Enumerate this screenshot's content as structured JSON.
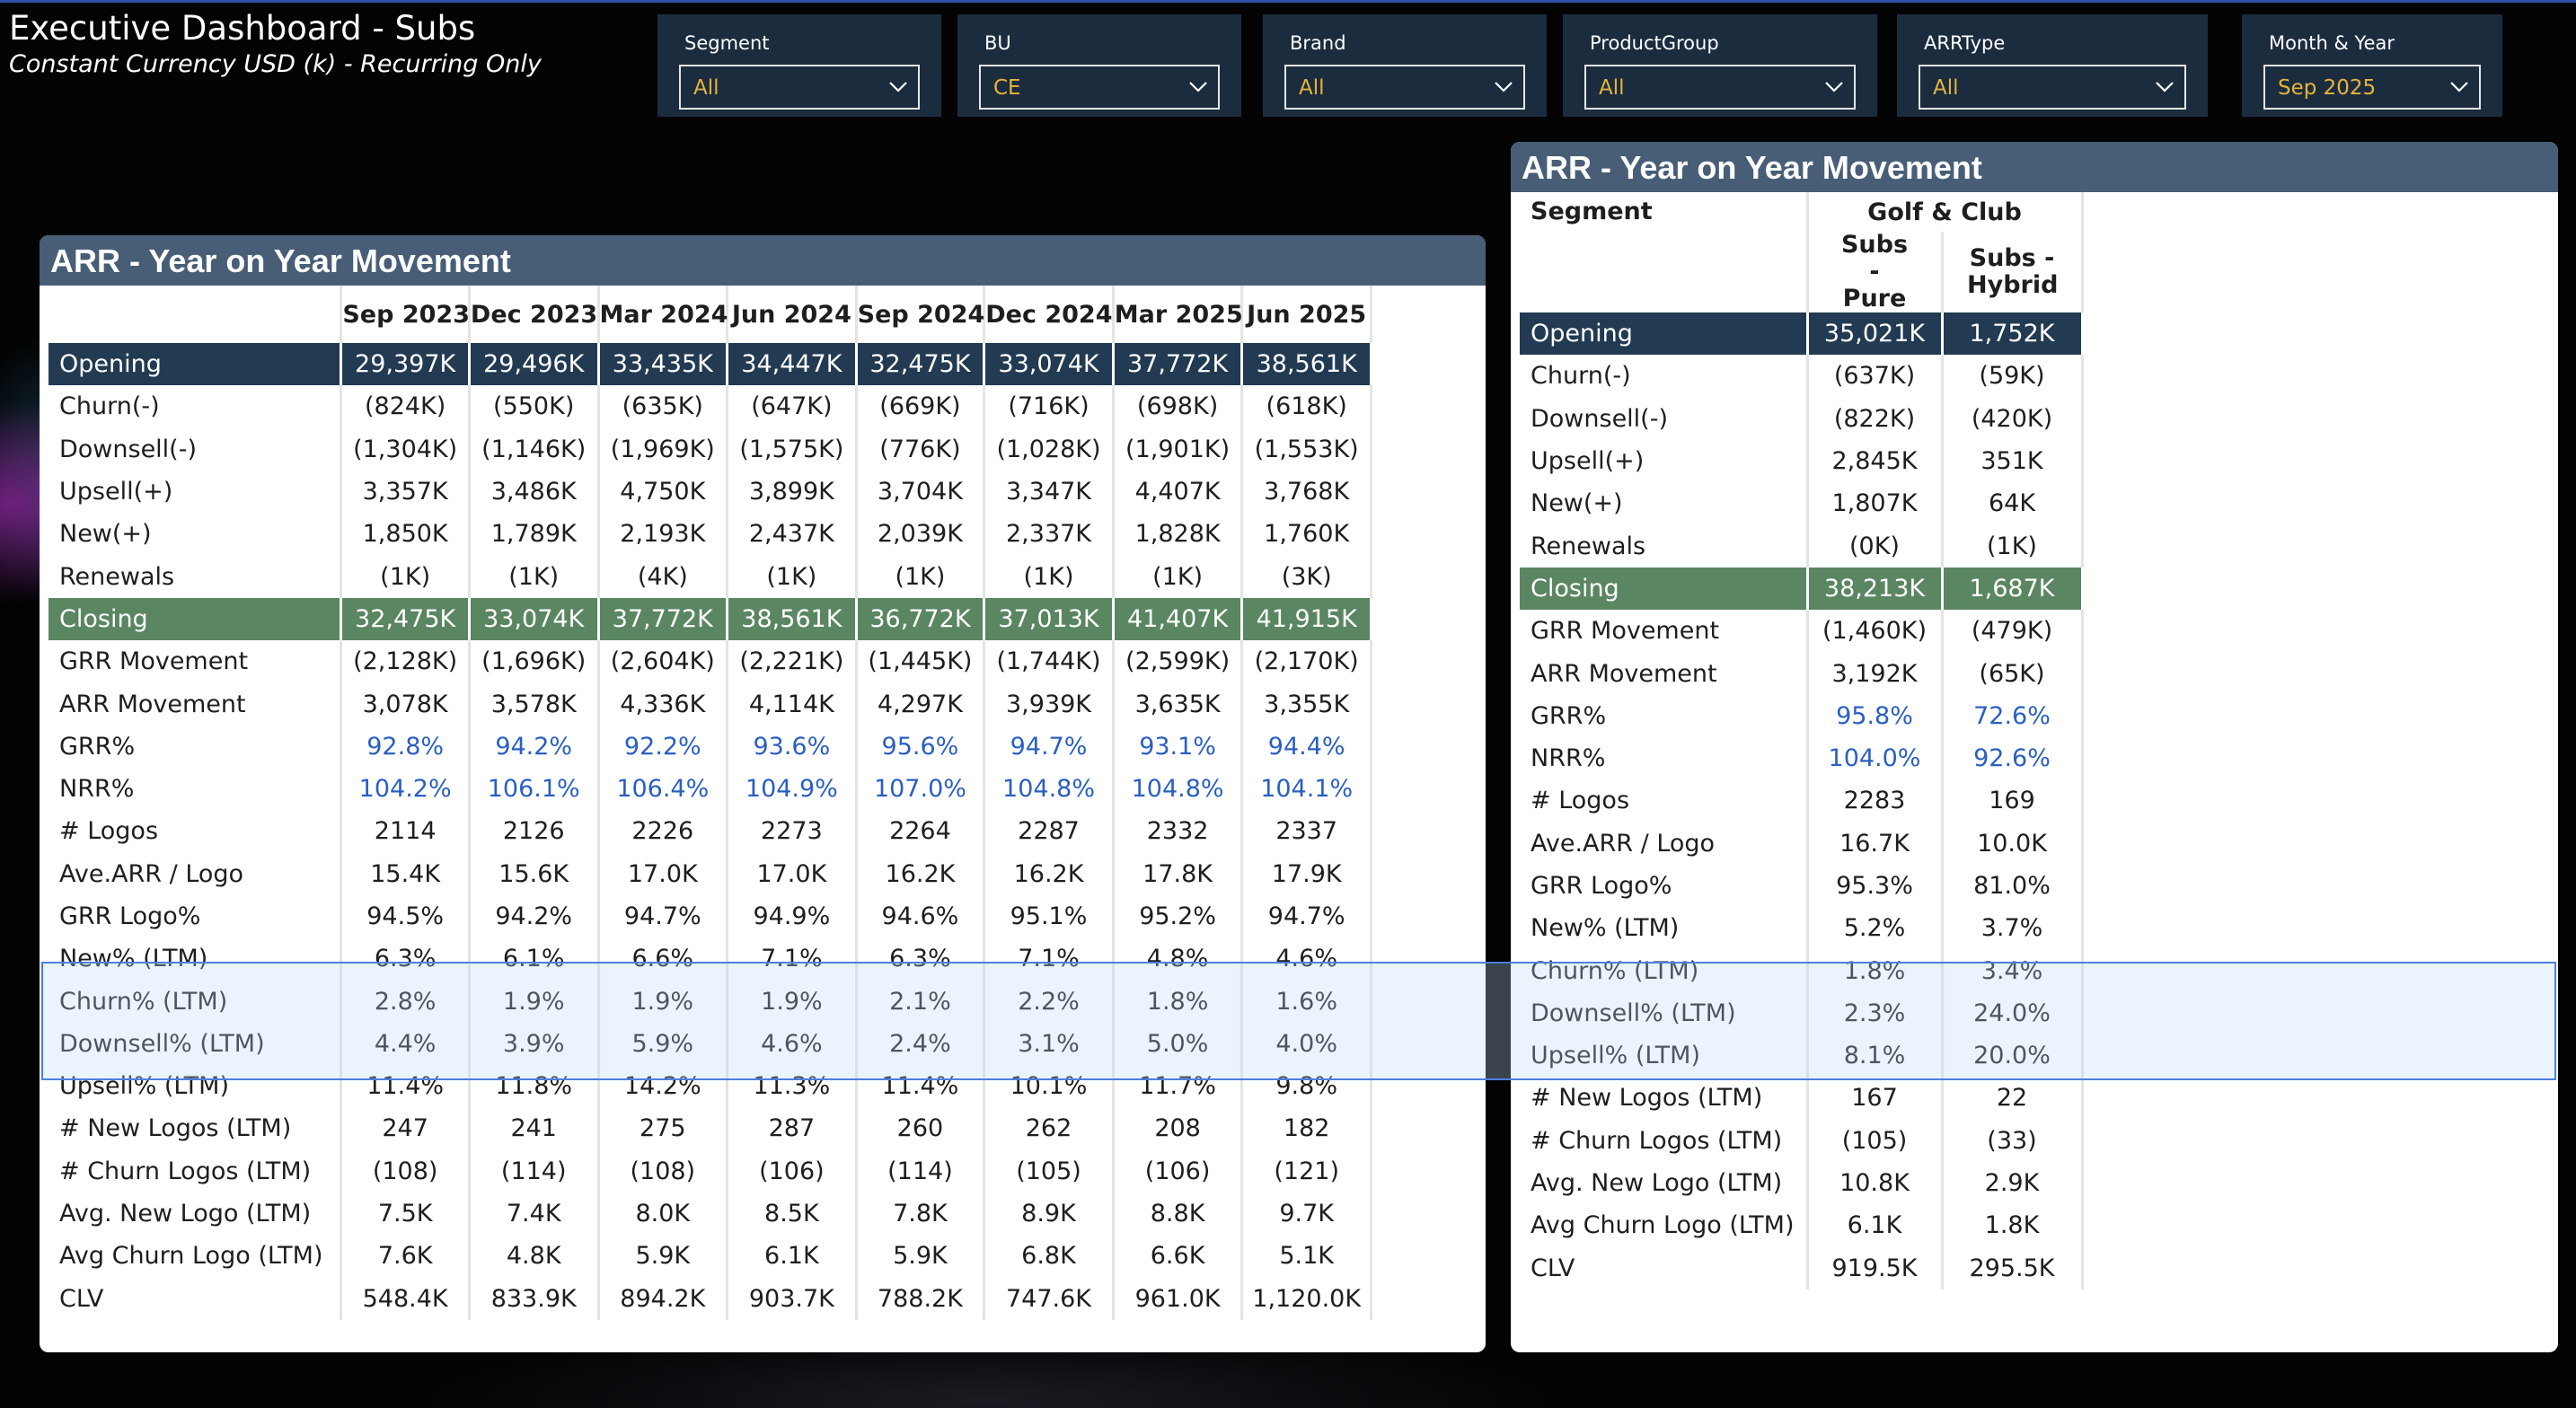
{
  "header": {
    "title": "Executive Dashboard - Subs",
    "subtitle": "Constant Currency USD (k) - Recurring Only"
  },
  "filters": [
    {
      "label": "Segment",
      "value": "All"
    },
    {
      "label": "BU",
      "value": "CE"
    },
    {
      "label": "Brand",
      "value": "All"
    },
    {
      "label": "ProductGroup",
      "value": "All"
    },
    {
      "label": "ARRType",
      "value": "All"
    },
    {
      "label": "Month & Year",
      "value": "Sep 2025"
    }
  ],
  "colors": {
    "header_bar": "#475e76",
    "opening_row": "#223a52",
    "closing_row": "#5a8661",
    "percent_text": "#2a5fc2",
    "filter_value": "#e6b33c",
    "filter_bg": "#1b2c3f",
    "selection_border": "#4a7fe0"
  },
  "left_table": {
    "title": "ARR - Year on Year Movement",
    "columns": [
      "Sep 2023",
      "Dec 2023",
      "Mar 2024",
      "Jun 2024",
      "Sep 2024",
      "Dec 2024",
      "Mar 2025",
      "Jun 2025"
    ],
    "rows": [
      {
        "label": "Opening",
        "values": [
          "29,397K",
          "29,496K",
          "33,435K",
          "34,447K",
          "32,475K",
          "33,074K",
          "37,772K",
          "38,561K"
        ]
      },
      {
        "label": "Churn(-)",
        "values": [
          "(824K)",
          "(550K)",
          "(635K)",
          "(647K)",
          "(669K)",
          "(716K)",
          "(698K)",
          "(618K)"
        ]
      },
      {
        "label": "Downsell(-)",
        "values": [
          "(1,304K)",
          "(1,146K)",
          "(1,969K)",
          "(1,575K)",
          "(776K)",
          "(1,028K)",
          "(1,901K)",
          "(1,553K)"
        ]
      },
      {
        "label": "Upsell(+)",
        "values": [
          "3,357K",
          "3,486K",
          "4,750K",
          "3,899K",
          "3,704K",
          "3,347K",
          "4,407K",
          "3,768K"
        ]
      },
      {
        "label": "New(+)",
        "values": [
          "1,850K",
          "1,789K",
          "2,193K",
          "2,437K",
          "2,039K",
          "2,337K",
          "1,828K",
          "1,760K"
        ]
      },
      {
        "label": "Renewals",
        "values": [
          "(1K)",
          "(1K)",
          "(4K)",
          "(1K)",
          "(1K)",
          "(1K)",
          "(1K)",
          "(3K)"
        ]
      },
      {
        "label": "Closing",
        "values": [
          "32,475K",
          "33,074K",
          "37,772K",
          "38,561K",
          "36,772K",
          "37,013K",
          "41,407K",
          "41,915K"
        ]
      },
      {
        "label": "GRR Movement",
        "values": [
          "(2,128K)",
          "(1,696K)",
          "(2,604K)",
          "(2,221K)",
          "(1,445K)",
          "(1,744K)",
          "(2,599K)",
          "(2,170K)"
        ]
      },
      {
        "label": "ARR Movement",
        "values": [
          "3,078K",
          "3,578K",
          "4,336K",
          "4,114K",
          "4,297K",
          "3,939K",
          "3,635K",
          "3,355K"
        ]
      },
      {
        "label": "GRR%",
        "values": [
          "92.8%",
          "94.2%",
          "92.2%",
          "93.6%",
          "95.6%",
          "94.7%",
          "93.1%",
          "94.4%"
        ]
      },
      {
        "label": "NRR%",
        "values": [
          "104.2%",
          "106.1%",
          "106.4%",
          "104.9%",
          "107.0%",
          "104.8%",
          "104.8%",
          "104.1%"
        ]
      },
      {
        "label": "# Logos",
        "values": [
          "2114",
          "2126",
          "2226",
          "2273",
          "2264",
          "2287",
          "2332",
          "2337"
        ]
      },
      {
        "label": "Ave.ARR / Logo",
        "values": [
          "15.4K",
          "15.6K",
          "17.0K",
          "17.0K",
          "16.2K",
          "16.2K",
          "17.8K",
          "17.9K"
        ]
      },
      {
        "label": "GRR Logo%",
        "values": [
          "94.5%",
          "94.2%",
          "94.7%",
          "94.9%",
          "94.6%",
          "95.1%",
          "95.2%",
          "94.7%"
        ]
      },
      {
        "label": "New% (LTM)",
        "values": [
          "6.3%",
          "6.1%",
          "6.6%",
          "7.1%",
          "6.3%",
          "7.1%",
          "4.8%",
          "4.6%"
        ]
      },
      {
        "label": "Churn% (LTM)",
        "values": [
          "2.8%",
          "1.9%",
          "1.9%",
          "1.9%",
          "2.1%",
          "2.2%",
          "1.8%",
          "1.6%"
        ]
      },
      {
        "label": "Downsell% (LTM)",
        "values": [
          "4.4%",
          "3.9%",
          "5.9%",
          "4.6%",
          "2.4%",
          "3.1%",
          "5.0%",
          "4.0%"
        ]
      },
      {
        "label": "Upsell% (LTM)",
        "values": [
          "11.4%",
          "11.8%",
          "14.2%",
          "11.3%",
          "11.4%",
          "10.1%",
          "11.7%",
          "9.8%"
        ]
      },
      {
        "label": "# New Logos (LTM)",
        "values": [
          "247",
          "241",
          "275",
          "287",
          "260",
          "262",
          "208",
          "182"
        ]
      },
      {
        "label": "# Churn Logos (LTM)",
        "values": [
          "(108)",
          "(114)",
          "(108)",
          "(106)",
          "(114)",
          "(105)",
          "(106)",
          "(121)"
        ]
      },
      {
        "label": "Avg. New Logo (LTM)",
        "values": [
          "7.5K",
          "7.4K",
          "8.0K",
          "8.5K",
          "7.8K",
          "8.9K",
          "8.8K",
          "9.7K"
        ]
      },
      {
        "label": "Avg Churn Logo (LTM)",
        "values": [
          "7.6K",
          "4.8K",
          "5.9K",
          "6.1K",
          "5.9K",
          "6.8K",
          "6.6K",
          "5.1K"
        ]
      },
      {
        "label": "CLV",
        "values": [
          "548.4K",
          "833.9K",
          "894.2K",
          "903.7K",
          "788.2K",
          "747.6K",
          "961.0K",
          "1,120.0K"
        ]
      }
    ]
  },
  "right_table": {
    "title": "ARR - Year on Year Movement",
    "row_header": "Segment",
    "group": "Golf & Club",
    "columns": [
      "Subs - Pure",
      "Subs - Hybrid"
    ],
    "rows": [
      {
        "label": "Opening",
        "values": [
          "35,021K",
          "1,752K"
        ]
      },
      {
        "label": "Churn(-)",
        "values": [
          "(637K)",
          "(59K)"
        ]
      },
      {
        "label": "Downsell(-)",
        "values": [
          "(822K)",
          "(420K)"
        ]
      },
      {
        "label": "Upsell(+)",
        "values": [
          "2,845K",
          "351K"
        ]
      },
      {
        "label": "New(+)",
        "values": [
          "1,807K",
          "64K"
        ]
      },
      {
        "label": "Renewals",
        "values": [
          "(0K)",
          "(1K)"
        ]
      },
      {
        "label": "Closing",
        "values": [
          "38,213K",
          "1,687K"
        ]
      },
      {
        "label": "GRR Movement",
        "values": [
          "(1,460K)",
          "(479K)"
        ]
      },
      {
        "label": "ARR Movement",
        "values": [
          "3,192K",
          "(65K)"
        ]
      },
      {
        "label": "GRR%",
        "values": [
          "95.8%",
          "72.6%"
        ]
      },
      {
        "label": "NRR%",
        "values": [
          "104.0%",
          "92.6%"
        ]
      },
      {
        "label": "# Logos",
        "values": [
          "2283",
          "169"
        ]
      },
      {
        "label": "Ave.ARR / Logo",
        "values": [
          "16.7K",
          "10.0K"
        ]
      },
      {
        "label": "GRR Logo%",
        "values": [
          "95.3%",
          "81.0%"
        ]
      },
      {
        "label": "New% (LTM)",
        "values": [
          "5.2%",
          "3.7%"
        ]
      },
      {
        "label": "Churn% (LTM)",
        "values": [
          "1.8%",
          "3.4%"
        ]
      },
      {
        "label": "Downsell% (LTM)",
        "values": [
          "2.3%",
          "24.0%"
        ]
      },
      {
        "label": "Upsell% (LTM)",
        "values": [
          "8.1%",
          "20.0%"
        ]
      },
      {
        "label": "# New Logos (LTM)",
        "values": [
          "167",
          "22"
        ]
      },
      {
        "label": "# Churn Logos (LTM)",
        "values": [
          "(105)",
          "(33)"
        ]
      },
      {
        "label": "Avg. New Logo (LTM)",
        "values": [
          "10.8K",
          "2.9K"
        ]
      },
      {
        "label": "Avg Churn Logo (LTM)",
        "values": [
          "6.1K",
          "1.8K"
        ]
      },
      {
        "label": "CLV",
        "values": [
          "919.5K",
          "295.5K"
        ]
      }
    ]
  }
}
